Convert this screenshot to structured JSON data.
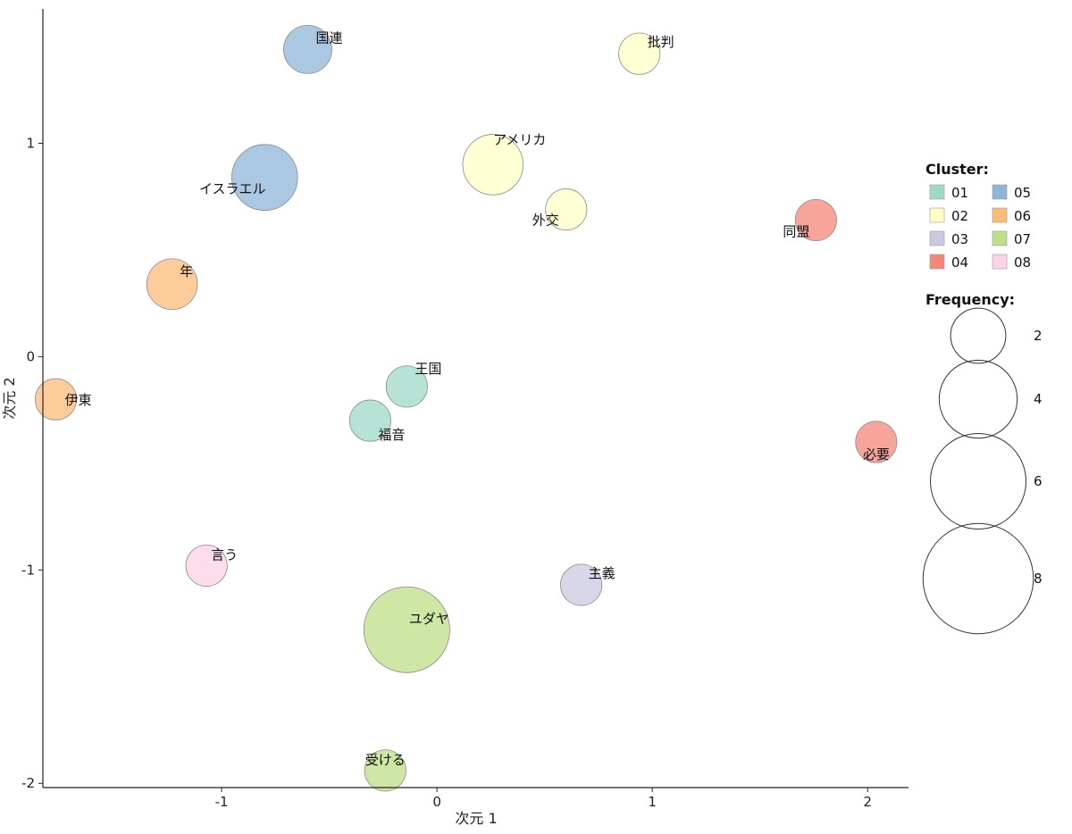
{
  "chart_data": {
    "type": "scatter",
    "subtype": "bubble",
    "xlabel": "次元 1",
    "ylabel": "次元 2",
    "xlim": [
      -1.83,
      2.19
    ],
    "ylim": [
      -2.02,
      1.63
    ],
    "xticks": [
      -1,
      0,
      1,
      2
    ],
    "yticks": [
      -2,
      -1,
      0,
      1
    ],
    "grid": false,
    "legend_position": "right",
    "cluster_legend": {
      "title": "Cluster:",
      "entries": [
        {
          "label": "01",
          "color": "#9fd8c8"
        },
        {
          "label": "02",
          "color": "#ffffc6"
        },
        {
          "label": "03",
          "color": "#cbc8e2"
        },
        {
          "label": "04",
          "color": "#f4877a"
        },
        {
          "label": "05",
          "color": "#8fb6d8"
        },
        {
          "label": "06",
          "color": "#fdbb78"
        },
        {
          "label": "07",
          "color": "#bedf86"
        },
        {
          "label": "08",
          "color": "#fbd2e6"
        }
      ]
    },
    "size_legend": {
      "title": "Frequency:",
      "values": [
        2,
        4,
        6,
        8
      ]
    },
    "points": [
      {
        "word": "国連",
        "x": -0.6,
        "y": 1.44,
        "cluster": "05",
        "frequency": 3.0
      },
      {
        "word": "批判",
        "x": 0.94,
        "y": 1.42,
        "cluster": "02",
        "frequency": 2.2
      },
      {
        "word": "アメリカ",
        "x": 0.26,
        "y": 0.9,
        "cluster": "02",
        "frequency": 4.7
      },
      {
        "word": "イスラエル",
        "x": -0.8,
        "y": 0.84,
        "cluster": "05",
        "frequency": 5.6
      },
      {
        "word": "外交",
        "x": 0.6,
        "y": 0.69,
        "cluster": "02",
        "frequency": 2.2
      },
      {
        "word": "同盟",
        "x": 1.76,
        "y": 0.64,
        "cluster": "04",
        "frequency": 2.2
      },
      {
        "word": "年",
        "x": -1.23,
        "y": 0.34,
        "cluster": "06",
        "frequency": 3.3
      },
      {
        "word": "伊東",
        "x": -1.77,
        "y": -0.2,
        "cluster": "06",
        "frequency": 2.2
      },
      {
        "word": "王国",
        "x": -0.14,
        "y": -0.14,
        "cluster": "01",
        "frequency": 2.2
      },
      {
        "word": "福音",
        "x": -0.31,
        "y": -0.3,
        "cluster": "01",
        "frequency": 2.2
      },
      {
        "word": "必要",
        "x": 2.04,
        "y": -0.4,
        "cluster": "04",
        "frequency": 2.2
      },
      {
        "word": "言う",
        "x": -1.07,
        "y": -0.98,
        "cluster": "08",
        "frequency": 2.2
      },
      {
        "word": "主義",
        "x": 0.67,
        "y": -1.07,
        "cluster": "03",
        "frequency": 2.2
      },
      {
        "word": "ユダヤ",
        "x": -0.14,
        "y": -1.28,
        "cluster": "07",
        "frequency": 9.5
      },
      {
        "word": "受ける",
        "x": -0.24,
        "y": -1.94,
        "cluster": "07",
        "frequency": 2.2
      }
    ]
  }
}
